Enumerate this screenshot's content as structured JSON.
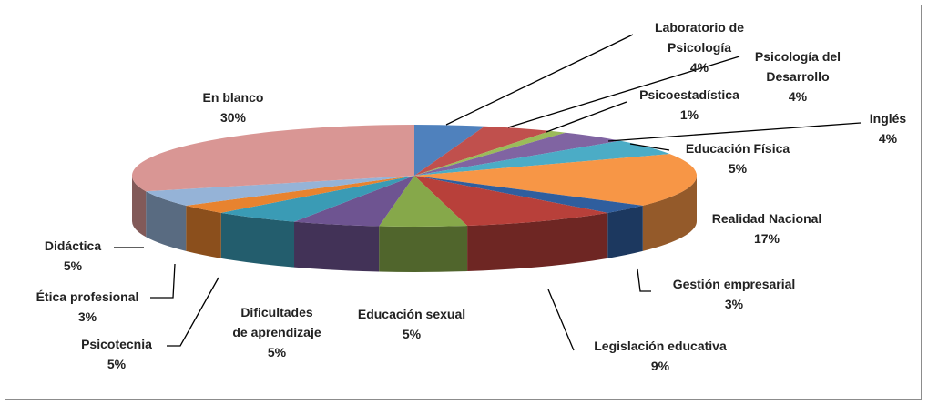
{
  "chart_data": {
    "type": "pie",
    "categories": [
      "Laboratorio de\nPsicología",
      "Psicología del\nDesarrollo",
      "Psicoestadística",
      "Inglés",
      "Educación Física",
      "Realidad Nacional",
      "Gestión empresarial",
      "Legislación educativa",
      "Educación sexual",
      "Dificultades\nde aprendizaje",
      "Psicotecnia",
      "Ética profesional",
      "Didáctica",
      "En blanco"
    ],
    "values": [
      4,
      4,
      1,
      4,
      5,
      17,
      3,
      9,
      5,
      5,
      5,
      3,
      5,
      30
    ],
    "value_labels": [
      "4%",
      "4%",
      "1%",
      "4%",
      "5%",
      "17%",
      "3%",
      "9%",
      "5%",
      "5%",
      "5%",
      "3%",
      "5%",
      "30%"
    ],
    "colors": [
      "#4f81bd",
      "#c0504d",
      "#9bbb59",
      "#8064a2",
      "#4bacc6",
      "#f79646",
      "#2f5e9e",
      "#b8403a",
      "#86a84a",
      "#6e5491",
      "#3a9bb5",
      "#e8832f",
      "#95b3d7",
      "#d99694"
    ]
  }
}
